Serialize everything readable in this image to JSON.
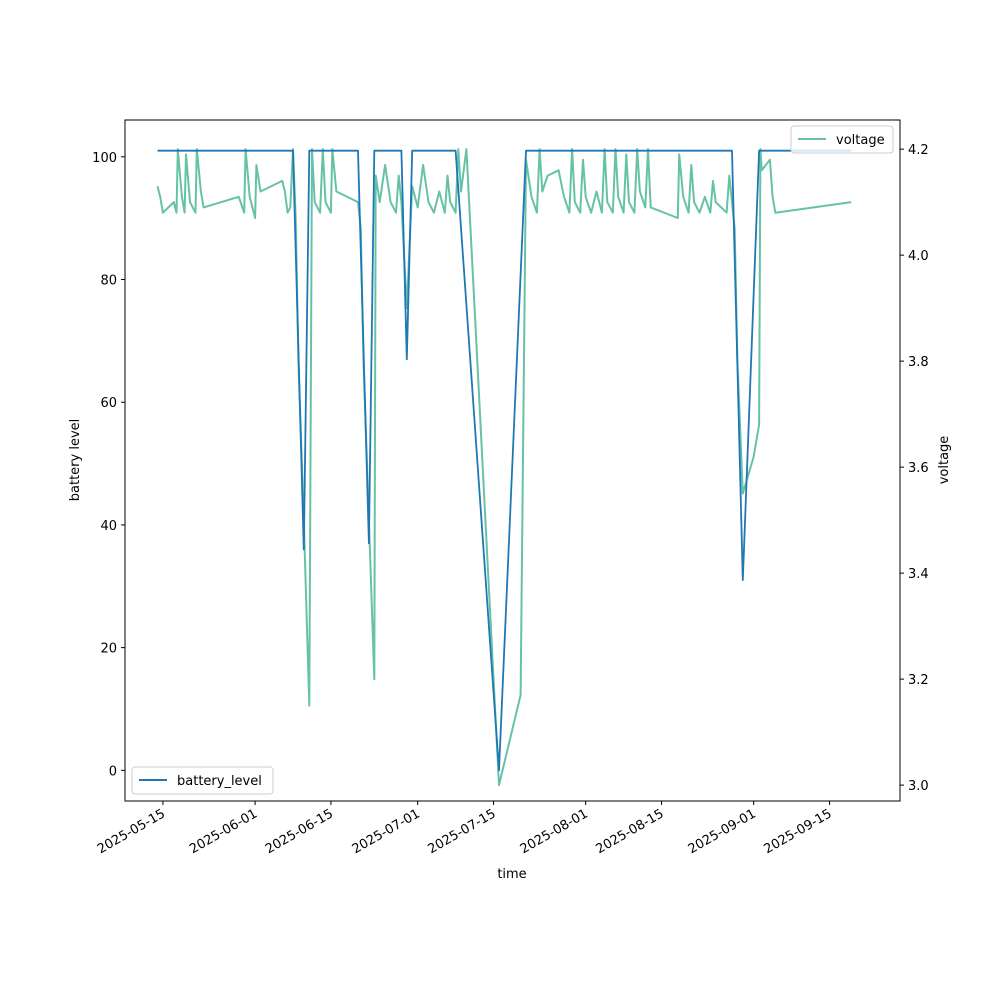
{
  "chart_data": {
    "type": "line",
    "xlabel": "time",
    "ylabel_left": "battery level",
    "ylabel_right": "voltage",
    "x_range": [
      "2025-05-08",
      "2025-09-28"
    ],
    "y_left_range": [
      -5,
      106
    ],
    "y_right_range": [
      2.97,
      4.255
    ],
    "x_ticks": [
      "2025-05-15",
      "2025-06-01",
      "2025-06-15",
      "2025-07-01",
      "2025-07-15",
      "2025-08-01",
      "2025-08-15",
      "2025-09-01",
      "2025-09-15"
    ],
    "y_left_ticks": [
      0,
      20,
      40,
      60,
      80,
      100
    ],
    "y_right_ticks": [
      "3.0",
      "3.2",
      "3.4",
      "3.6",
      "3.8",
      "4.0",
      "4.2"
    ],
    "legend_left_position": "lower-left",
    "legend_right_position": "upper-right",
    "series": [
      {
        "name": "battery_level",
        "axis": "left",
        "color": "#1f77b4",
        "points": [
          [
            "2025-05-14",
            101
          ],
          [
            "2025-06-08",
            101
          ],
          [
            "2025-06-10",
            36
          ],
          [
            "2025-06-11",
            101
          ],
          [
            "2025-06-20",
            101
          ],
          [
            "2025-06-22",
            37
          ],
          [
            "2025-06-23",
            101
          ],
          [
            "2025-06-28",
            101
          ],
          [
            "2025-06-29",
            67
          ],
          [
            "2025-06-30",
            101
          ],
          [
            "2025-07-08",
            101
          ],
          [
            "2025-07-16",
            0
          ],
          [
            "2025-07-21",
            101
          ],
          [
            "2025-08-28",
            101
          ],
          [
            "2025-08-30",
            31
          ],
          [
            "2025-09-02",
            101
          ],
          [
            "2025-09-19",
            101
          ]
        ]
      },
      {
        "name": "voltage",
        "axis": "right",
        "color": "#66c2a5",
        "points": [
          [
            "2025-05-14",
            4.13
          ],
          [
            "2025-05-14T12",
            4.11
          ],
          [
            "2025-05-15",
            4.08
          ],
          [
            "2025-05-16",
            4.09
          ],
          [
            "2025-05-17",
            4.1
          ],
          [
            "2025-05-17T12",
            4.08
          ],
          [
            "2025-05-17T18",
            4.2
          ],
          [
            "2025-05-18T12",
            4.11
          ],
          [
            "2025-05-19",
            4.08
          ],
          [
            "2025-05-19T06",
            4.19
          ],
          [
            "2025-05-20",
            4.1
          ],
          [
            "2025-05-21",
            4.08
          ],
          [
            "2025-05-21T06",
            4.2
          ],
          [
            "2025-05-22",
            4.12
          ],
          [
            "2025-05-22T12",
            4.09
          ],
          [
            "2025-05-29",
            4.11
          ],
          [
            "2025-05-30",
            4.08
          ],
          [
            "2025-05-30T06",
            4.2
          ],
          [
            "2025-05-31",
            4.11
          ],
          [
            "2025-06-01",
            4.07
          ],
          [
            "2025-06-01T06",
            4.17
          ],
          [
            "2025-06-02",
            4.12
          ],
          [
            "2025-06-06",
            4.14
          ],
          [
            "2025-06-06T12",
            4.12
          ],
          [
            "2025-06-07",
            4.08
          ],
          [
            "2025-06-07T12",
            4.09
          ],
          [
            "2025-06-08",
            4.2
          ],
          [
            "2025-06-08T12",
            4.07
          ],
          [
            "2025-06-09",
            3.8
          ],
          [
            "2025-06-10",
            3.5
          ],
          [
            "2025-06-11",
            3.15
          ],
          [
            "2025-06-11T12",
            4.2
          ],
          [
            "2025-06-12",
            4.1
          ],
          [
            "2025-06-13",
            4.08
          ],
          [
            "2025-06-13T12",
            4.2
          ],
          [
            "2025-06-14",
            4.1
          ],
          [
            "2025-06-15",
            4.08
          ],
          [
            "2025-06-15T06",
            4.2
          ],
          [
            "2025-06-16",
            4.12
          ],
          [
            "2025-06-20",
            4.1
          ],
          [
            "2025-06-20T12",
            4.05
          ],
          [
            "2025-06-21",
            3.8
          ],
          [
            "2025-06-22",
            3.5
          ],
          [
            "2025-06-23",
            3.2
          ],
          [
            "2025-06-23T06",
            4.15
          ],
          [
            "2025-06-24",
            4.1
          ],
          [
            "2025-06-25",
            4.17
          ],
          [
            "2025-06-26",
            4.1
          ],
          [
            "2025-06-27",
            4.08
          ],
          [
            "2025-06-27T12",
            4.15
          ],
          [
            "2025-06-28",
            4.1
          ],
          [
            "2025-06-29",
            3.9
          ],
          [
            "2025-06-30",
            4.13
          ],
          [
            "2025-07-01",
            4.09
          ],
          [
            "2025-07-02",
            4.17
          ],
          [
            "2025-07-03",
            4.1
          ],
          [
            "2025-07-04",
            4.08
          ],
          [
            "2025-07-05",
            4.12
          ],
          [
            "2025-07-06",
            4.08
          ],
          [
            "2025-07-06T12",
            4.15
          ],
          [
            "2025-07-07",
            4.1
          ],
          [
            "2025-07-08",
            4.08
          ],
          [
            "2025-07-08T12",
            4.2
          ],
          [
            "2025-07-09",
            4.12
          ],
          [
            "2025-07-10",
            4.2
          ],
          [
            "2025-07-12",
            3.8
          ],
          [
            "2025-07-14",
            3.4
          ],
          [
            "2025-07-16",
            3.0
          ],
          [
            "2025-07-20",
            3.17
          ],
          [
            "2025-07-21",
            4.18
          ],
          [
            "2025-07-22",
            4.11
          ],
          [
            "2025-07-23",
            4.08
          ],
          [
            "2025-07-23T12",
            4.2
          ],
          [
            "2025-07-24",
            4.12
          ],
          [
            "2025-07-25",
            4.15
          ],
          [
            "2025-07-27",
            4.16
          ],
          [
            "2025-07-28",
            4.11
          ],
          [
            "2025-07-29",
            4.08
          ],
          [
            "2025-07-29T12",
            4.2
          ],
          [
            "2025-07-30",
            4.1
          ],
          [
            "2025-07-31",
            4.08
          ],
          [
            "2025-07-31T12",
            4.18
          ],
          [
            "2025-08-01",
            4.11
          ],
          [
            "2025-08-02",
            4.08
          ],
          [
            "2025-08-03",
            4.12
          ],
          [
            "2025-08-04",
            4.08
          ],
          [
            "2025-08-04T12",
            4.2
          ],
          [
            "2025-08-05",
            4.1
          ],
          [
            "2025-08-06",
            4.08
          ],
          [
            "2025-08-06T12",
            4.2
          ],
          [
            "2025-08-07",
            4.11
          ],
          [
            "2025-08-08",
            4.08
          ],
          [
            "2025-08-08T12",
            4.19
          ],
          [
            "2025-08-09",
            4.1
          ],
          [
            "2025-08-10",
            4.08
          ],
          [
            "2025-08-10T12",
            4.2
          ],
          [
            "2025-08-11",
            4.12
          ],
          [
            "2025-08-12",
            4.09
          ],
          [
            "2025-08-12T12",
            4.2
          ],
          [
            "2025-08-13",
            4.09
          ],
          [
            "2025-08-18",
            4.07
          ],
          [
            "2025-08-18T06",
            4.19
          ],
          [
            "2025-08-19",
            4.11
          ],
          [
            "2025-08-20",
            4.08
          ],
          [
            "2025-08-20T12",
            4.17
          ],
          [
            "2025-08-21",
            4.1
          ],
          [
            "2025-08-22",
            4.08
          ],
          [
            "2025-08-23",
            4.11
          ],
          [
            "2025-08-24",
            4.08
          ],
          [
            "2025-08-24T12",
            4.14
          ],
          [
            "2025-08-25",
            4.1
          ],
          [
            "2025-08-27",
            4.08
          ],
          [
            "2025-08-27T12",
            4.15
          ],
          [
            "2025-08-28",
            4.1
          ],
          [
            "2025-08-28T12",
            4.05
          ],
          [
            "2025-08-29",
            3.8
          ],
          [
            "2025-08-30",
            3.55
          ],
          [
            "2025-09-01",
            3.62
          ],
          [
            "2025-09-02",
            3.68
          ],
          [
            "2025-09-02T06",
            4.2
          ],
          [
            "2025-09-02T12",
            4.16
          ],
          [
            "2025-09-04",
            4.18
          ],
          [
            "2025-09-04T12",
            4.11
          ],
          [
            "2025-09-05",
            4.08
          ],
          [
            "2025-09-19",
            4.1
          ]
        ]
      }
    ]
  }
}
